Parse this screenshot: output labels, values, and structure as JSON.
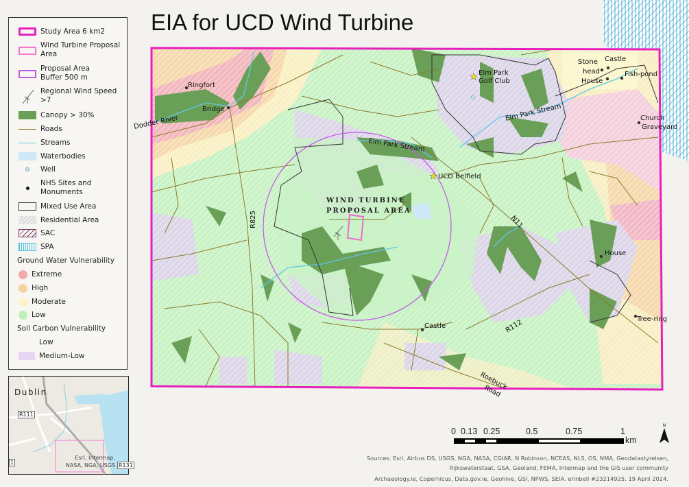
{
  "title": "EIA for UCD Wind Turbine",
  "legend": {
    "items": [
      {
        "label": "Study Area 6 km2",
        "icon": "study-area-swatch",
        "color": "#e81fbe"
      },
      {
        "label": "Wind Turbine Proposal Area",
        "icon": "proposal-area-swatch",
        "color": "#f477d0"
      },
      {
        "label": "Proposal Area Buffer 500 m",
        "icon": "buffer-swatch",
        "color": "#c45be6"
      },
      {
        "label": "Regional Wind Speed >7",
        "icon": "wind-turbine-icon"
      },
      {
        "label": "Canopy > 30%",
        "icon": "canopy-swatch",
        "color": "#6a9f58"
      },
      {
        "label": "Roads",
        "icon": "road-line",
        "color": "#8b7a2a"
      },
      {
        "label": "Streams",
        "icon": "stream-line",
        "color": "#5fc8e8"
      },
      {
        "label": "Waterbodies",
        "icon": "waterbody-swatch",
        "color": "#cfe8f7"
      },
      {
        "label": "Well",
        "icon": "well-icon"
      },
      {
        "label": "NHS Sites and Monuments",
        "icon": "monument-dot-icon"
      },
      {
        "label": "Mixed Use Area",
        "icon": "mixed-use-swatch"
      },
      {
        "label": "Residential Area",
        "icon": "residential-hatch-swatch"
      },
      {
        "label": "SAC",
        "icon": "sac-hatch-swatch"
      },
      {
        "label": "SPA",
        "icon": "spa-hatch-swatch"
      }
    ],
    "groundwater": {
      "heading": "Ground Water Vulnerability",
      "classes": [
        {
          "label": "Extreme",
          "color": "#f2a9a9"
        },
        {
          "label": "High",
          "color": "#f7d3a0"
        },
        {
          "label": "Moderate",
          "color": "#fbf5c3"
        },
        {
          "label": "Low",
          "color": "#bff0bc"
        }
      ]
    },
    "soil_carbon": {
      "heading": "Soil Carbon Vulnerability",
      "classes": [
        {
          "label": "Low",
          "color": "transparent"
        },
        {
          "label": "Medium-Low",
          "color": "#e6d6f3"
        }
      ]
    }
  },
  "inset": {
    "city_label": "Dublin",
    "road_labels": [
      "R111",
      "1",
      "R131"
    ],
    "attribution_line1": "Esri, Intermap,",
    "attribution_line2": "NASA, NGA, USGS"
  },
  "map_labels": {
    "ringfort": "Ringfort",
    "bridge": "Bridge",
    "dodder_river": "Dodder River",
    "elm_park_golf_club_1": "Elm Park",
    "elm_park_golf_club_2": "Golf Club",
    "stone_head_1": "Stone",
    "stone_head_2": "head",
    "stone_head_3": "House",
    "castle_ne": "Castle",
    "fish_pond": "Fish-pond",
    "church": "Church",
    "graveyard": "Graveyard",
    "elm_park_stream_ne": "Elm Park Stream",
    "elm_park_stream_c": "Elm Park Stream",
    "ucd_belfield": "UCD Belfield",
    "proposal_1": "WIND TURBINE",
    "proposal_2": "PROPOSAL AREA",
    "r825": "R825",
    "n11": "N11",
    "house": "House",
    "tree_ring": "Tree-ring",
    "castle_s": "Castle",
    "r112": "R112",
    "roebuck_1": "Roebuck",
    "roebuck_2": "Road"
  },
  "scale_bar": {
    "ticks": [
      "0",
      "0.13",
      "0.25",
      "0.5",
      "0.75",
      "1"
    ],
    "unit": "km"
  },
  "north_arrow": "N",
  "sources": {
    "line1": "Sources: Esri, Airbus DS, USGS, NGA, NASA, CGIAR, N Robinson, NCEAS, NLS, OS, NMA, Geodatastyrelsen,",
    "line2": "Rijkswaterstaat, GSA, Geoland, FEMA, Intermap and the GIS user community",
    "line3": "Archaeology.ie, Copernicus, Data.gov.ie, Geohive, GSI, NPWS, SEIA.  erinbell #23214925. 19 April 2024."
  }
}
